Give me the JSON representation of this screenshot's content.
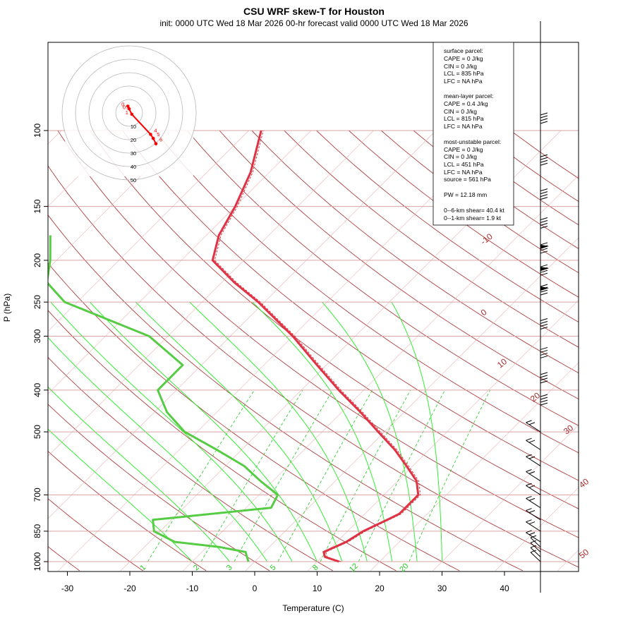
{
  "title": "CSU WRF skew-T for Houston",
  "subtitle": "init: 0000 UTC Wed 18 Mar 2026     00-hr forecast valid 0000 UTC Wed 18 Mar 2026",
  "colors": {
    "temperature": "#dd3344",
    "dewpoint": "#55cc44",
    "isotherm": "#a52a2a",
    "isobar": "#d9a3a3",
    "mixing_ratio": "#22cc22",
    "moist_adiabat": "#33ee33",
    "hodograph": "#ff0000"
  },
  "chart_data": {
    "type": "skew-t",
    "xlabel": "Temperature (C)",
    "ylabel": "P (hPa)",
    "x_ticks": [
      "-30",
      "-20",
      "-10",
      "0",
      "10",
      "20",
      "30",
      "40"
    ],
    "y_ticks": [
      "100",
      "150",
      "200",
      "250",
      "300",
      "400",
      "500",
      "700",
      "850",
      "1000"
    ],
    "isotherm_labels": [
      "-10",
      "0",
      "10",
      "20",
      "30",
      "40",
      "50"
    ],
    "mixing_ratio_labels": [
      "1",
      "2",
      "3",
      "5",
      "8",
      "12",
      "20"
    ],
    "temperature_profile": [
      {
        "p": 1000,
        "t": 13.5
      },
      {
        "p": 975,
        "t": 10.5
      },
      {
        "p": 950,
        "t": 9.5
      },
      {
        "p": 925,
        "t": 10.5
      },
      {
        "p": 900,
        "t": 11.5
      },
      {
        "p": 850,
        "t": 12.5
      },
      {
        "p": 800,
        "t": 14.5
      },
      {
        "p": 775,
        "t": 15.5
      },
      {
        "p": 750,
        "t": 15.5
      },
      {
        "p": 700,
        "t": 15.5
      },
      {
        "p": 650,
        "t": 13.0
      },
      {
        "p": 600,
        "t": 9.0
      },
      {
        "p": 550,
        "t": 4.5
      },
      {
        "p": 500,
        "t": -1.0
      },
      {
        "p": 450,
        "t": -7.0
      },
      {
        "p": 400,
        "t": -14.0
      },
      {
        "p": 350,
        "t": -21.5
      },
      {
        "p": 300,
        "t": -30.0
      },
      {
        "p": 250,
        "t": -41.0
      },
      {
        "p": 225,
        "t": -48.0
      },
      {
        "p": 200,
        "t": -55.0
      },
      {
        "p": 175,
        "t": -58.0
      },
      {
        "p": 150,
        "t": -60.0
      },
      {
        "p": 125,
        "t": -63.0
      },
      {
        "p": 100,
        "t": -68.0
      }
    ],
    "dewpoint_profile": [
      {
        "p": 1000,
        "td": -1.0
      },
      {
        "p": 975,
        "td": -2.0
      },
      {
        "p": 950,
        "td": -3.0
      },
      {
        "p": 925,
        "td": -8.0
      },
      {
        "p": 900,
        "td": -16.0
      },
      {
        "p": 850,
        "td": -21.0
      },
      {
        "p": 800,
        "td": -23.0
      },
      {
        "p": 750,
        "td": -6.0
      },
      {
        "p": 700,
        "td": -7.0
      },
      {
        "p": 650,
        "td": -12.0
      },
      {
        "p": 600,
        "td": -17.0
      },
      {
        "p": 550,
        "td": -24.0
      },
      {
        "p": 500,
        "td": -32.0
      },
      {
        "p": 450,
        "td": -38.0
      },
      {
        "p": 400,
        "td": -43.0
      },
      {
        "p": 350,
        "td": -43.0
      },
      {
        "p": 300,
        "td": -53.0
      },
      {
        "p": 250,
        "td": -72.0
      },
      {
        "p": 225,
        "td": -78.0
      },
      {
        "p": 200,
        "td": -81.0
      },
      {
        "p": 175,
        "td": -85.0
      }
    ],
    "wind_barb_pressures": [
      1000,
      975,
      950,
      925,
      900,
      850,
      800,
      750,
      700,
      650,
      600,
      550,
      500,
      450,
      400,
      350,
      300,
      250,
      225,
      200,
      175,
      150,
      125,
      100
    ],
    "hodograph": {
      "ring_labels": [
        "10",
        "20",
        "30",
        "40",
        "50"
      ],
      "points": [
        {
          "label": "0",
          "u": -1,
          "v": 5
        },
        {
          "label": "0.5",
          "u": 0,
          "v": 3
        },
        {
          "label": "1",
          "u": 2,
          "v": -1
        },
        {
          "label": "4",
          "u": 16,
          "v": -16
        },
        {
          "label": "5",
          "u": 18,
          "v": -19
        },
        {
          "label": "6",
          "u": 20,
          "v": -23
        }
      ]
    }
  },
  "info_box": {
    "surface_header": "surface parcel:",
    "surface_cape": "CAPE = 0 J/kg",
    "surface_cin": "CIN = 0 J/kg",
    "surface_lcl": "LCL = 835 hPa",
    "surface_lfc": "LFC = NA hPa",
    "mean_header": "mean-layer parcel:",
    "mean_cape": "CAPE = 0.4 J/kg",
    "mean_cin": "CIN = 0 J/kg",
    "mean_lcl": "LCL = 815 hPa",
    "mean_lfc": "LFC = NA hPa",
    "mu_header": "most-unstable parcel:",
    "mu_cape": "CAPE = 0 J/kg",
    "mu_cin": "CIN = 0 J/kg",
    "mu_lcl": "LCL = 451 hPa",
    "mu_lfc": "LFC = NA hPa",
    "mu_source": "source = 561 hPa",
    "pw": "PW =  12.18 mm",
    "shear_6km": "0--6-km shear= 40.4 kt",
    "shear_1km": "0--1-km shear= 1.9 kt"
  }
}
